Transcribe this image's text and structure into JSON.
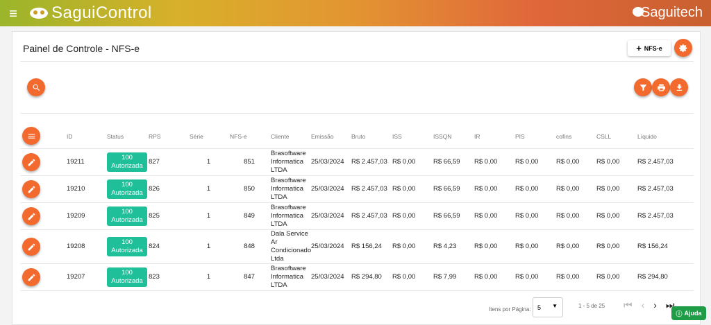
{
  "header": {
    "logo": "SaguiControl",
    "brand": "Saguitech"
  },
  "panel": {
    "title": "Painel de Controle - NFS-e",
    "new_button": "NFS-e"
  },
  "table": {
    "columns": [
      "ID",
      "Status",
      "RPS",
      "Série",
      "NFS-e",
      "Cliente",
      "Emissão",
      "Bruto",
      "ISS",
      "ISSQN",
      "IR",
      "PIS",
      "cofins",
      "CSLL",
      "Líquido"
    ],
    "rows": [
      {
        "id": "19211",
        "status_code": "100",
        "status": "Autorizada",
        "rps": "827",
        "serie": "1",
        "nfse": "851",
        "cliente": "Brasoftware Informatica LTDA",
        "emissao": "25/03/2024",
        "bruto": "R$ 2.457,03",
        "iss": "R$ 0,00",
        "issqn": "R$ 66,59",
        "ir": "R$ 0,00",
        "pis": "R$ 0,00",
        "cofins": "R$ 0,00",
        "csll": "R$ 0,00",
        "liquido": "R$ 2.457,03"
      },
      {
        "id": "19210",
        "status_code": "100",
        "status": "Autorizada",
        "rps": "826",
        "serie": "1",
        "nfse": "850",
        "cliente": "Brasoftware Informatica LTDA",
        "emissao": "25/03/2024",
        "bruto": "R$ 2.457,03",
        "iss": "R$ 0,00",
        "issqn": "R$ 66,59",
        "ir": "R$ 0,00",
        "pis": "R$ 0,00",
        "cofins": "R$ 0,00",
        "csll": "R$ 0,00",
        "liquido": "R$ 2.457,03"
      },
      {
        "id": "19209",
        "status_code": "100",
        "status": "Autorizada",
        "rps": "825",
        "serie": "1",
        "nfse": "849",
        "cliente": "Brasoftware Informatica LTDA",
        "emissao": "25/03/2024",
        "bruto": "R$ 2.457,03",
        "iss": "R$ 0,00",
        "issqn": "R$ 66,59",
        "ir": "R$ 0,00",
        "pis": "R$ 0,00",
        "cofins": "R$ 0,00",
        "csll": "R$ 0,00",
        "liquido": "R$ 2.457,03"
      },
      {
        "id": "19208",
        "status_code": "100",
        "status": "Autorizada",
        "rps": "824",
        "serie": "1",
        "nfse": "848",
        "cliente": "Dala Service Ar Condicionado Ltda",
        "emissao": "25/03/2024",
        "bruto": "R$ 156,24",
        "iss": "R$ 0,00",
        "issqn": "R$ 4,23",
        "ir": "R$ 0,00",
        "pis": "R$ 0,00",
        "cofins": "R$ 0,00",
        "csll": "R$ 0,00",
        "liquido": "R$ 156,24"
      },
      {
        "id": "19207",
        "status_code": "100",
        "status": "Autorizada",
        "rps": "823",
        "serie": "1",
        "nfse": "847",
        "cliente": "Brasoftware Informatica LTDA",
        "emissao": "25/03/2024",
        "bruto": "R$ 294,80",
        "iss": "R$ 0,00",
        "issqn": "R$ 7,99",
        "ir": "R$ 0,00",
        "pis": "R$ 0,00",
        "cofins": "R$ 0,00",
        "csll": "R$ 0,00",
        "liquido": "R$ 294,80"
      }
    ]
  },
  "pagination": {
    "items_label": "Itens por Página:",
    "page_size": "5",
    "range": "1 - 5 de 25"
  },
  "help": "Ajuda"
}
